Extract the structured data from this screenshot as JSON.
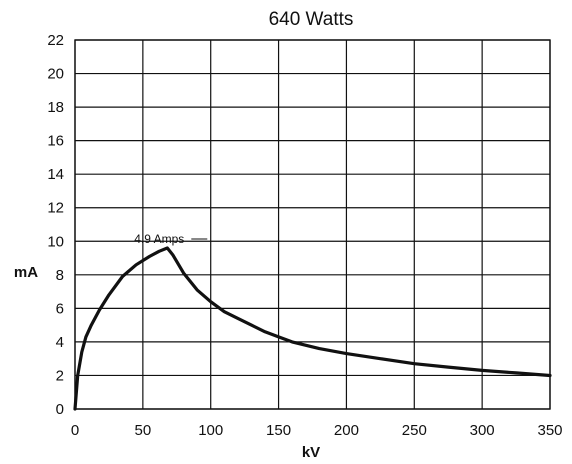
{
  "chart_data": {
    "type": "line",
    "title": "640 Watts",
    "xlabel": "kV",
    "ylabel": "mA",
    "xlim": [
      0,
      350
    ],
    "ylim": [
      0,
      22
    ],
    "x_ticks": [
      "0",
      "50",
      "100",
      "150",
      "200",
      "250",
      "300",
      "350"
    ],
    "y_ticks": [
      "0",
      "2",
      "4",
      "6",
      "8",
      "10",
      "12",
      "14",
      "16",
      "18",
      "20",
      "22"
    ],
    "grid": true,
    "series": [
      {
        "x": [
          0,
          2,
          5,
          8,
          12,
          18,
          25,
          35,
          45,
          55,
          62,
          68,
          72,
          80,
          90,
          100,
          110,
          120,
          130,
          140,
          150,
          160,
          180,
          200,
          225,
          250,
          275,
          300,
          325,
          350
        ],
        "y": [
          0,
          2.0,
          3.4,
          4.3,
          5.0,
          5.9,
          6.8,
          7.9,
          8.6,
          9.1,
          9.4,
          9.6,
          9.2,
          8.1,
          7.1,
          6.4,
          5.8,
          5.4,
          5.0,
          4.6,
          4.3,
          4.0,
          3.6,
          3.3,
          3.0,
          2.7,
          2.5,
          2.3,
          2.15,
          2.0
        ]
      }
    ],
    "annotation": {
      "text": "4.9 Amps",
      "x": 68,
      "y": 9.6
    }
  }
}
